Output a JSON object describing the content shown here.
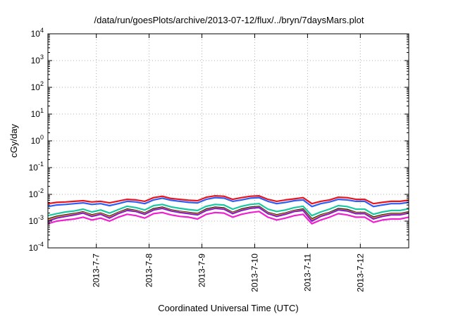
{
  "chart_data": {
    "type": "line",
    "title": "/data/run/goesPlots/archive/2013-07-12/flux/../bryn/7daysMars.plot",
    "xlabel": "Coordinated Universal Time (UTC)",
    "ylabel": "cGy/day",
    "yscale": "log",
    "ylim": [
      0.0001,
      10000
    ],
    "xlim": [
      "2013-07-06 02:00",
      "2013-07-12 22:00"
    ],
    "grid": true,
    "legend": "none",
    "x_ticks": [
      "2013-7-7",
      "2013-7-8",
      "2013-7-9",
      "2013-7-10",
      "2013-7-11",
      "2013-7-12"
    ],
    "y_ticks": [
      {
        "base": "10",
        "exp": "-4"
      },
      {
        "base": "10",
        "exp": "-3"
      },
      {
        "base": "10",
        "exp": "-2"
      },
      {
        "base": "10",
        "exp": "-1"
      },
      {
        "base": "10",
        "exp": "0"
      },
      {
        "base": "10",
        "exp": "1"
      },
      {
        "base": "10",
        "exp": "2"
      },
      {
        "base": "10",
        "exp": "3"
      },
      {
        "base": "10",
        "exp": "4"
      }
    ],
    "x": [
      "2013-07-06 02:00",
      "2013-07-06 06:00",
      "2013-07-06 10:00",
      "2013-07-06 14:00",
      "2013-07-06 18:00",
      "2013-07-06 22:00",
      "2013-07-07 02:00",
      "2013-07-07 06:00",
      "2013-07-07 10:00",
      "2013-07-07 14:00",
      "2013-07-07 18:00",
      "2013-07-07 22:00",
      "2013-07-08 02:00",
      "2013-07-08 06:00",
      "2013-07-08 10:00",
      "2013-07-08 14:00",
      "2013-07-08 18:00",
      "2013-07-08 22:00",
      "2013-07-09 02:00",
      "2013-07-09 06:00",
      "2013-07-09 10:00",
      "2013-07-09 14:00",
      "2013-07-09 18:00",
      "2013-07-09 22:00",
      "2013-07-10 02:00",
      "2013-07-10 06:00",
      "2013-07-10 10:00",
      "2013-07-10 14:00",
      "2013-07-10 18:00",
      "2013-07-10 22:00",
      "2013-07-11 02:00",
      "2013-07-11 06:00",
      "2013-07-11 10:00",
      "2013-07-11 14:00",
      "2013-07-11 18:00",
      "2013-07-11 22:00",
      "2013-07-12 02:00",
      "2013-07-12 06:00",
      "2013-07-12 10:00",
      "2013-07-12 14:00",
      "2013-07-12 18:00",
      "2013-07-12 22:00"
    ],
    "series": [
      {
        "color": "#e8141e",
        "values": [
          0.0045,
          0.005,
          0.0052,
          0.0055,
          0.0058,
          0.0052,
          0.0055,
          0.0048,
          0.0056,
          0.0065,
          0.0062,
          0.0055,
          0.0075,
          0.0085,
          0.007,
          0.0065,
          0.006,
          0.0058,
          0.0078,
          0.0088,
          0.0085,
          0.0065,
          0.0075,
          0.0085,
          0.0088,
          0.0065,
          0.0055,
          0.0062,
          0.0068,
          0.0075,
          0.0045,
          0.0055,
          0.0062,
          0.0078,
          0.0075,
          0.0065,
          0.0065,
          0.0045,
          0.005,
          0.0055,
          0.0055,
          0.006
        ]
      },
      {
        "color": "#2d5ff5",
        "values": [
          0.0035,
          0.004,
          0.0042,
          0.0045,
          0.0048,
          0.0042,
          0.0045,
          0.0038,
          0.0045,
          0.0055,
          0.0052,
          0.0045,
          0.0062,
          0.0072,
          0.006,
          0.0055,
          0.005,
          0.0048,
          0.0065,
          0.0075,
          0.0072,
          0.0055,
          0.0062,
          0.0072,
          0.0075,
          0.0055,
          0.0045,
          0.005,
          0.0058,
          0.0062,
          0.0035,
          0.0045,
          0.0052,
          0.0065,
          0.0062,
          0.0055,
          0.0055,
          0.0035,
          0.004,
          0.0045,
          0.0045,
          0.005
        ]
      },
      {
        "color": "#19c7a0",
        "values": [
          0.0016,
          0.0019,
          0.0022,
          0.0024,
          0.0028,
          0.0022,
          0.0026,
          0.002,
          0.0027,
          0.0036,
          0.0032,
          0.0026,
          0.0038,
          0.0042,
          0.0034,
          0.003,
          0.0027,
          0.0025,
          0.0036,
          0.0042,
          0.004,
          0.0028,
          0.0036,
          0.0042,
          0.0045,
          0.0028,
          0.0023,
          0.0026,
          0.0032,
          0.0036,
          0.0016,
          0.0022,
          0.0028,
          0.0038,
          0.0035,
          0.0028,
          0.0028,
          0.0018,
          0.0022,
          0.0025,
          0.0025,
          0.0029
        ]
      },
      {
        "color": "#1a1a1a",
        "values": [
          0.0012,
          0.0015,
          0.0017,
          0.0019,
          0.0022,
          0.0017,
          0.002,
          0.0015,
          0.0021,
          0.0028,
          0.0025,
          0.002,
          0.0029,
          0.0033,
          0.0026,
          0.0023,
          0.0021,
          0.0019,
          0.0028,
          0.0033,
          0.0031,
          0.0021,
          0.0028,
          0.0033,
          0.0035,
          0.0021,
          0.0017,
          0.002,
          0.0025,
          0.0028,
          0.0012,
          0.0017,
          0.0021,
          0.0029,
          0.0027,
          0.0021,
          0.0021,
          0.0014,
          0.0017,
          0.0019,
          0.0019,
          0.0022
        ]
      },
      {
        "color": "#f0a020",
        "values": [
          0.0011,
          0.0014,
          0.0016,
          0.0018,
          0.0021,
          0.0016,
          0.0019,
          0.0014,
          0.002,
          0.0026,
          0.0024,
          0.0019,
          0.0027,
          0.0031,
          0.0025,
          0.0022,
          0.002,
          0.0018,
          0.0026,
          0.0031,
          0.0029,
          0.002,
          0.0026,
          0.0031,
          0.0033,
          0.002,
          0.0016,
          0.0019,
          0.0024,
          0.0026,
          0.0011,
          0.0016,
          0.002,
          0.0027,
          0.0025,
          0.002,
          0.002,
          0.0013,
          0.0016,
          0.0018,
          0.0018,
          0.0021
        ]
      },
      {
        "color": "#8a1ec8",
        "values": [
          0.001,
          0.0013,
          0.0015,
          0.0017,
          0.002,
          0.0015,
          0.0018,
          0.0013,
          0.0019,
          0.0025,
          0.0023,
          0.0018,
          0.0026,
          0.003,
          0.0024,
          0.0021,
          0.0019,
          0.0017,
          0.0025,
          0.003,
          0.0028,
          0.0019,
          0.0025,
          0.003,
          0.0032,
          0.0019,
          0.0015,
          0.0018,
          0.0023,
          0.0025,
          0.001,
          0.0015,
          0.0019,
          0.0026,
          0.0024,
          0.0019,
          0.0019,
          0.0012,
          0.0015,
          0.0017,
          0.0017,
          0.002
        ]
      },
      {
        "color": "#f020d0",
        "values": [
          0.0008,
          0.001,
          0.0011,
          0.0012,
          0.0014,
          0.0011,
          0.0013,
          0.001,
          0.0014,
          0.0018,
          0.0016,
          0.0013,
          0.0019,
          0.0021,
          0.0017,
          0.0015,
          0.0014,
          0.0012,
          0.0018,
          0.0021,
          0.002,
          0.0014,
          0.0018,
          0.0021,
          0.0023,
          0.0014,
          0.0011,
          0.0013,
          0.0016,
          0.0018,
          0.0008,
          0.0011,
          0.0014,
          0.0019,
          0.0017,
          0.0014,
          0.0014,
          0.0009,
          0.0011,
          0.0012,
          0.0012,
          0.0014
        ]
      }
    ]
  }
}
